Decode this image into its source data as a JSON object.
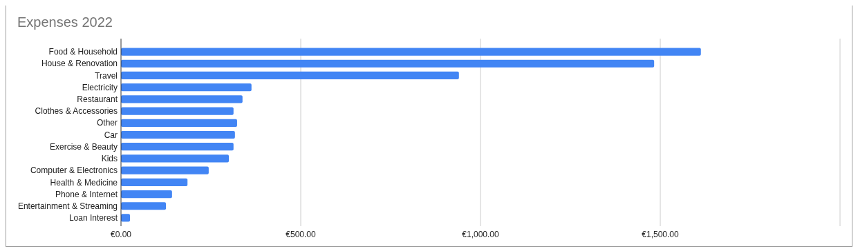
{
  "chart_data": {
    "type": "bar",
    "title": "Expenses 2022",
    "orientation": "horizontal",
    "categories": [
      "Food & Household",
      "House & Renovation",
      "Travel",
      "Electricity",
      "Restaurant",
      "Clothes & Accessories",
      "Other",
      "Car",
      "Exercise & Beauty",
      "Kids",
      "Computer & Electronics",
      "Health & Medicine",
      "Phone & Internet",
      "Entertainment & Streaming",
      "Loan Interest"
    ],
    "values": [
      1613,
      1483,
      940,
      363,
      338,
      313,
      323,
      317,
      313,
      300,
      244,
      185,
      142,
      125,
      25
    ],
    "color": "#4285f4",
    "xlim": [
      0,
      2000
    ],
    "xticks": [
      {
        "value": 0,
        "label": "€0.00"
      },
      {
        "value": 500,
        "label": "€500.00"
      },
      {
        "value": 1000,
        "label": "€1,000.00"
      },
      {
        "value": 1500,
        "label": "€1,500.00"
      },
      {
        "value": 2000,
        "label": null
      }
    ],
    "grid": "x"
  }
}
